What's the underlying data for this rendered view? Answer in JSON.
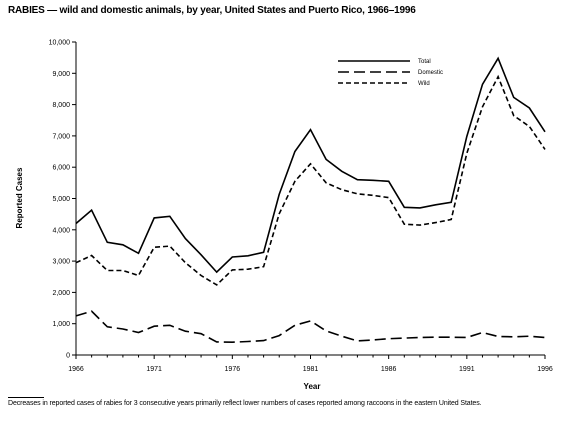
{
  "title": "RABIES — wild and domestic animals, by year, United States and Puerto Rico, 1966–1996",
  "footnote": "Decreases in reported cases of rabies for 3 consecutive years primarily reflect lower numbers of cases reported among raccoons in the eastern United States.",
  "chart_data": {
    "type": "line",
    "xlabel": "Year",
    "ylabel": "Reported Cases",
    "xlim": [
      1966,
      1996
    ],
    "ylim": [
      0,
      10000
    ],
    "x_ticks": [
      1966,
      1971,
      1976,
      1981,
      1986,
      1991,
      1996
    ],
    "y_ticks": [
      0,
      1000,
      2000,
      3000,
      4000,
      5000,
      6000,
      7000,
      8000,
      9000,
      10000
    ],
    "y_tick_labels": [
      "0",
      "1,000",
      "2,000",
      "3,000",
      "4,000",
      "5,000",
      "6,000",
      "7,000",
      "8,000",
      "9,000",
      "10,000"
    ],
    "x": [
      1966,
      1967,
      1968,
      1969,
      1970,
      1971,
      1972,
      1973,
      1974,
      1975,
      1976,
      1977,
      1978,
      1979,
      1980,
      1981,
      1982,
      1983,
      1984,
      1985,
      1986,
      1987,
      1988,
      1989,
      1990,
      1991,
      1992,
      1993,
      1994,
      1995,
      1996
    ],
    "series": [
      {
        "name": "Total",
        "style": "solid",
        "values": [
          4200,
          4630,
          3600,
          3520,
          3250,
          4380,
          4430,
          3720,
          3200,
          2650,
          3130,
          3170,
          3280,
          5130,
          6500,
          7200,
          6250,
          5870,
          5600,
          5580,
          5550,
          4720,
          4700,
          4800,
          4880,
          6980,
          8650,
          9480,
          8230,
          7890,
          7130
        ]
      },
      {
        "name": "Domestic",
        "style": "long-dash",
        "values": [
          1250,
          1400,
          900,
          830,
          720,
          920,
          950,
          760,
          680,
          420,
          410,
          430,
          460,
          620,
          950,
          1090,
          770,
          600,
          450,
          480,
          520,
          540,
          560,
          570,
          570,
          560,
          720,
          590,
          580,
          600,
          560
        ]
      },
      {
        "name": "Wild",
        "style": "short-dash",
        "values": [
          2950,
          3180,
          2700,
          2700,
          2540,
          3440,
          3480,
          2950,
          2540,
          2240,
          2720,
          2740,
          2820,
          4510,
          5550,
          6110,
          5500,
          5280,
          5150,
          5100,
          5030,
          4180,
          4150,
          4230,
          4330,
          6440,
          7930,
          8890,
          7650,
          7300,
          6570
        ]
      }
    ],
    "legend": {
      "position": "top-right",
      "entries": [
        "Total",
        "Domestic",
        "Wild"
      ]
    },
    "grid": false
  }
}
